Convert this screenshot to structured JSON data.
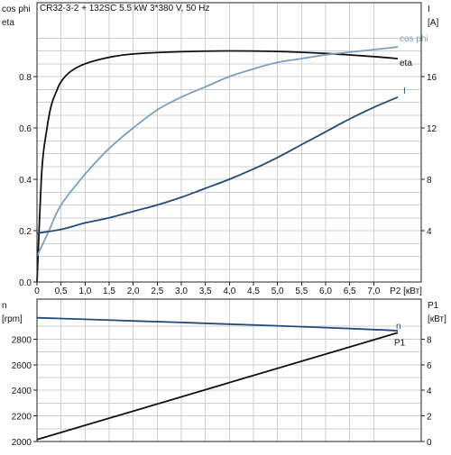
{
  "title": "CR32-3-2 + 132SC   5.5 kW   3*380 V, 50 Hz",
  "colors": {
    "eta": "#111111",
    "cosphi": "#7d9fbd",
    "current": "#234b78",
    "speed": "#234b78",
    "p1": "#111111",
    "grid": "#cfcfcf"
  },
  "chart_data": [
    {
      "type": "line",
      "grid": true,
      "x_ticks": [
        "0",
        "0,5",
        "1,0",
        "1,5",
        "2,0",
        "2,5",
        "3,0",
        "3,5",
        "4,0",
        "4,5",
        "5,0",
        "5,5",
        "6,0",
        "6,5",
        "7,0"
      ],
      "xlabel": "P2 [кВт]",
      "xlim": [
        0,
        7.5
      ],
      "left_axis": {
        "label_top": "cos phi",
        "label_bottom": "eta",
        "ylim": [
          0,
          1.0
        ],
        "ticks": [
          "0.0",
          "0.2",
          "0.4",
          "0.6",
          "0.8"
        ]
      },
      "right_axis": {
        "label_top": "I",
        "label_bottom": "[A]",
        "ylim": [
          0,
          20
        ],
        "ticks": [
          "4",
          "8",
          "12",
          "16"
        ]
      },
      "series": [
        {
          "name": "eta",
          "axis": "left",
          "x": [
            0,
            0.1,
            0.2,
            0.3,
            0.4,
            0.5,
            0.7,
            1.0,
            1.5,
            2.0,
            3.0,
            4.0,
            5.0,
            6.0,
            7.0,
            7.5
          ],
          "values": [
            0.0,
            0.43,
            0.59,
            0.69,
            0.74,
            0.78,
            0.82,
            0.85,
            0.875,
            0.888,
            0.897,
            0.9,
            0.898,
            0.89,
            0.878,
            0.87
          ]
        },
        {
          "name": "cos phi",
          "axis": "left",
          "x": [
            0,
            0.25,
            0.5,
            1.0,
            1.5,
            2.0,
            2.5,
            3.0,
            3.5,
            4.0,
            4.5,
            5.0,
            5.5,
            6.0,
            6.5,
            7.0,
            7.5
          ],
          "values": [
            0.1,
            0.2,
            0.3,
            0.42,
            0.52,
            0.6,
            0.67,
            0.72,
            0.76,
            0.8,
            0.83,
            0.855,
            0.87,
            0.885,
            0.895,
            0.905,
            0.915
          ]
        },
        {
          "name": "I",
          "axis": "right",
          "x": [
            0,
            0.5,
            1.0,
            1.5,
            2.0,
            2.5,
            3.0,
            3.5,
            4.0,
            4.5,
            5.0,
            5.5,
            6.0,
            6.5,
            7.0,
            7.5
          ],
          "values": [
            3.8,
            4.1,
            4.6,
            5.0,
            5.5,
            6.0,
            6.6,
            7.3,
            8.0,
            8.8,
            9.7,
            10.7,
            11.7,
            12.7,
            13.6,
            14.4
          ]
        }
      ]
    },
    {
      "type": "line",
      "grid": true,
      "xlim": [
        0,
        7.5
      ],
      "left_axis": {
        "label_top": "n",
        "label_bottom": "[rpm]",
        "ylim": [
          2000,
          3000
        ],
        "ticks": [
          "2000",
          "2200",
          "2400",
          "2600",
          "2800"
        ]
      },
      "right_axis": {
        "label_top": "P1",
        "label_bottom": "[кВт]",
        "ylim": [
          0,
          10
        ],
        "ticks": [
          "0",
          "2",
          "4",
          "6",
          "8"
        ]
      },
      "series": [
        {
          "name": "n",
          "axis": "left",
          "x": [
            0,
            1.0,
            2.0,
            3.0,
            4.0,
            5.0,
            6.0,
            7.0,
            7.5
          ],
          "values": [
            2967,
            2955,
            2942,
            2930,
            2917,
            2904,
            2890,
            2875,
            2866
          ]
        },
        {
          "name": "P1",
          "axis": "right",
          "x": [
            0,
            7.5
          ],
          "values": [
            0.15,
            8.5
          ]
        }
      ]
    }
  ]
}
